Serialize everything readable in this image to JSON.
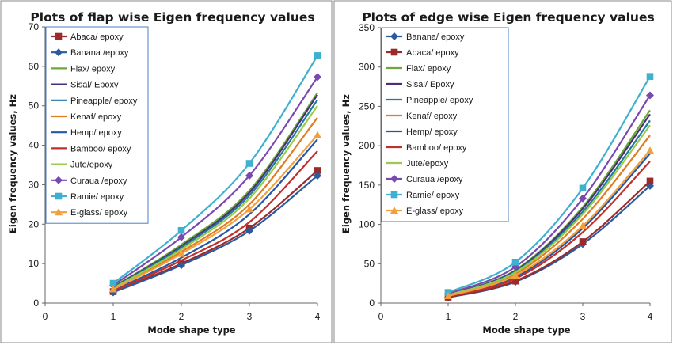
{
  "chart_data": [
    {
      "type": "line",
      "title": "Plots of flap wise Eigen frequency values",
      "xlabel": "Mode shape type",
      "ylabel": "Eigen frequency values, Hz",
      "x": [
        1,
        2,
        3,
        4
      ],
      "xlim": [
        0,
        4
      ],
      "ylim": [
        0,
        70
      ],
      "xticks": [
        "0",
        "1",
        "2",
        "3",
        "4"
      ],
      "yticks": [
        "0",
        "10",
        "20",
        "30",
        "40",
        "50",
        "60",
        "70"
      ],
      "legend_position": "top-left",
      "series": [
        {
          "name": "Abaca/ epoxy",
          "color": "#9b2b2b",
          "marker": "square",
          "values": [
            2.9,
            10.0,
            19.0,
            33.6
          ]
        },
        {
          "name": "Banana /epoxy",
          "color": "#2a5aa0",
          "marker": "diamond",
          "values": [
            2.7,
            9.6,
            18.3,
            32.3
          ]
        },
        {
          "name": "Flax/ epoxy",
          "color": "#6fa83a",
          "marker": "none",
          "values": [
            4.1,
            14.8,
            28.5,
            53.3
          ]
        },
        {
          "name": "Sisal/ Epoxy",
          "color": "#4b2e7a",
          "marker": "none",
          "values": [
            4.0,
            14.4,
            28.0,
            52.8
          ]
        },
        {
          "name": "Pineapple/ epoxy",
          "color": "#1f7aa0",
          "marker": "none",
          "values": [
            3.9,
            14.1,
            27.3,
            51.5
          ]
        },
        {
          "name": "Kenaf/ epoxy",
          "color": "#e07b22",
          "marker": "none",
          "values": [
            3.6,
            13.0,
            25.0,
            47.0
          ]
        },
        {
          "name": "Hemp/ epoxy",
          "color": "#2457a8",
          "marker": "none",
          "values": [
            3.2,
            11.5,
            22.5,
            41.5
          ]
        },
        {
          "name": "Bamboo/ epoxy",
          "color": "#c0302c",
          "marker": "none",
          "values": [
            3.0,
            10.8,
            20.5,
            38.5
          ]
        },
        {
          "name": "Jute/epoxy",
          "color": "#9acb4a",
          "marker": "none",
          "values": [
            3.8,
            13.6,
            26.5,
            50.0
          ]
        },
        {
          "name": "Curaua /epoxy",
          "color": "#7a49b0",
          "marker": "diamond",
          "values": [
            4.5,
            16.7,
            32.3,
            57.3
          ]
        },
        {
          "name": "Ramie/ epoxy",
          "color": "#3fb0cf",
          "marker": "square",
          "values": [
            5.0,
            18.4,
            35.4,
            62.7
          ]
        },
        {
          "name": "E-glass/ epoxy",
          "color": "#f3a03c",
          "marker": "triangle",
          "values": [
            3.5,
            12.5,
            23.8,
            42.6
          ]
        }
      ]
    },
    {
      "type": "line",
      "title": "Plots of edge wise Eigen frequency values",
      "xlabel": "Mode shape type",
      "ylabel": "Eigen frequency values, Hz",
      "x": [
        1,
        2,
        3,
        4
      ],
      "xlim": [
        0,
        4
      ],
      "ylim": [
        0,
        350
      ],
      "xticks": [
        "0",
        "1",
        "2",
        "3",
        "4"
      ],
      "yticks": [
        "0",
        "50",
        "100",
        "150",
        "200",
        "250",
        "300",
        "350"
      ],
      "legend_position": "top-left",
      "series": [
        {
          "name": "Banana/ epoxy",
          "color": "#2a5aa0",
          "marker": "diamond",
          "values": [
            7.0,
            27.0,
            75.0,
            149.0
          ]
        },
        {
          "name": "Abaca/ epoxy",
          "color": "#9b2b2b",
          "marker": "square",
          "values": [
            7.5,
            28.0,
            78.0,
            155.0
          ]
        },
        {
          "name": "Flax/ epoxy",
          "color": "#6fa83a",
          "marker": "none",
          "values": [
            11.0,
            42.0,
            122.0,
            245.0
          ]
        },
        {
          "name": "Sisal/ Epoxy",
          "color": "#4b2e7a",
          "marker": "none",
          "values": [
            10.8,
            41.0,
            120.0,
            240.0
          ]
        },
        {
          "name": "Pineapple/ epoxy",
          "color": "#1f7aa0",
          "marker": "none",
          "values": [
            10.5,
            40.0,
            116.0,
            232.0
          ]
        },
        {
          "name": "Kenaf/ epoxy",
          "color": "#e07b22",
          "marker": "none",
          "values": [
            9.8,
            37.0,
            107.0,
            213.0
          ]
        },
        {
          "name": "Hemp/ epoxy",
          "color": "#2457a8",
          "marker": "none",
          "values": [
            8.8,
            33.0,
            95.0,
            190.0
          ]
        },
        {
          "name": "Bamboo/ epoxy",
          "color": "#c0302c",
          "marker": "none",
          "values": [
            8.3,
            31.0,
            90.0,
            180.0
          ]
        },
        {
          "name": "Jute/epoxy",
          "color": "#9acb4a",
          "marker": "none",
          "values": [
            10.3,
            39.0,
            113.0,
            226.0
          ]
        },
        {
          "name": "Curaua /epoxy",
          "color": "#7a49b0",
          "marker": "diamond",
          "values": [
            12.0,
            46.0,
            133.0,
            264.0
          ]
        },
        {
          "name": "Ramie/ epoxy",
          "color": "#3fb0cf",
          "marker": "square",
          "values": [
            13.5,
            52.0,
            146.0,
            288.0
          ]
        },
        {
          "name": "E-glass/ epoxy",
          "color": "#f3a03c",
          "marker": "triangle",
          "values": [
            9.0,
            35.0,
            98.0,
            194.0
          ]
        }
      ]
    }
  ]
}
